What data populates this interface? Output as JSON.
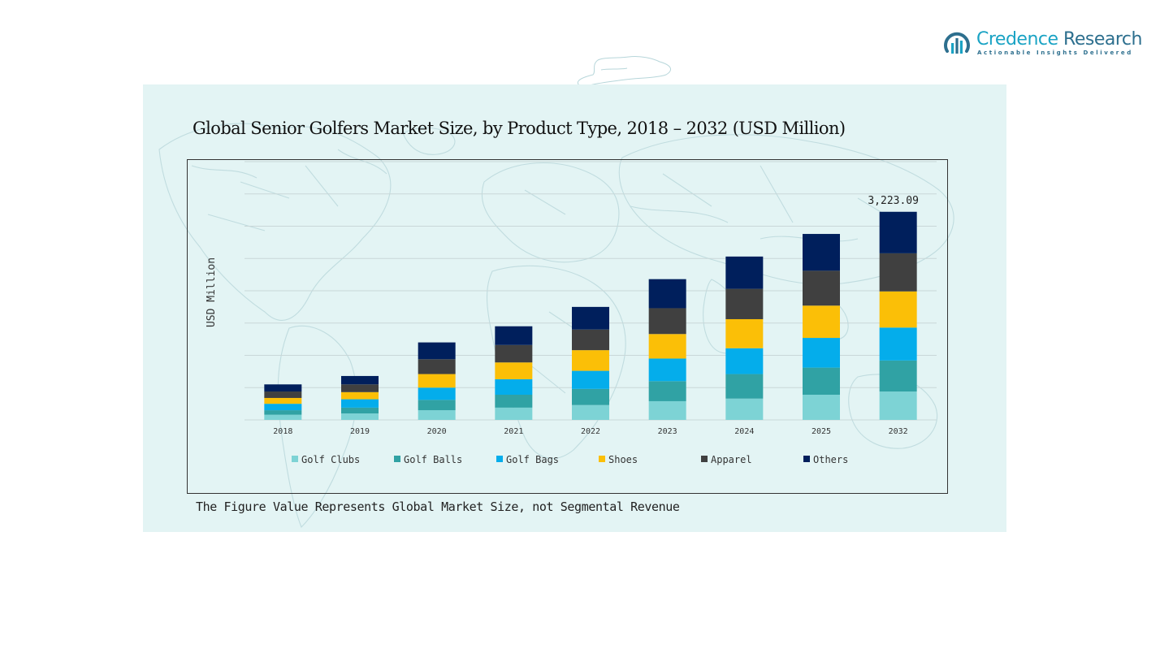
{
  "logo": {
    "name_part1": "Credence",
    "name_part2": "Research",
    "tagline": "Actionable Insights Delivered"
  },
  "footnote": "The Figure Value Represents Global Market Size, not Segmental Revenue",
  "colors": {
    "panel_bg": "#e3f4f4",
    "map_line": "#c0dcdf",
    "grid": "#c9d7d8"
  },
  "chart_data": {
    "type": "bar",
    "stacked": true,
    "title": "Global Senior Golfers Market Size, by Product Type, 2018 – 2032 (USD Million)",
    "xlabel": "",
    "ylabel": "USD Million",
    "ylim": [
      0,
      4000
    ],
    "grid": true,
    "legend_position": "bottom",
    "categories": [
      "2018",
      "2019",
      "2020",
      "2021",
      "2022",
      "2023",
      "2024",
      "2025",
      "2032"
    ],
    "series": [
      {
        "name": "Golf Clubs",
        "color": "#7dd3d5",
        "values": [
          80,
          100,
          150,
          190,
          230,
          290,
          330,
          390,
          440
        ]
      },
      {
        "name": "Golf Balls",
        "color": "#30a2a4",
        "values": [
          70,
          90,
          160,
          200,
          250,
          310,
          380,
          420,
          480
        ]
      },
      {
        "name": "Golf Bags",
        "color": "#04adeb",
        "values": [
          100,
          130,
          190,
          240,
          280,
          350,
          400,
          460,
          510
        ]
      },
      {
        "name": "Shoes",
        "color": "#fbbf07",
        "values": [
          90,
          110,
          210,
          260,
          320,
          380,
          450,
          500,
          560
        ]
      },
      {
        "name": "Apparel",
        "color": "#404040",
        "values": [
          100,
          120,
          230,
          270,
          320,
          400,
          470,
          540,
          590
        ]
      },
      {
        "name": "Others",
        "color": "#001f5c",
        "values": [
          110,
          130,
          260,
          290,
          350,
          450,
          500,
          570,
          643.09
        ]
      }
    ],
    "annotations": [
      {
        "category": "2032",
        "text": "3,223.09"
      }
    ]
  }
}
